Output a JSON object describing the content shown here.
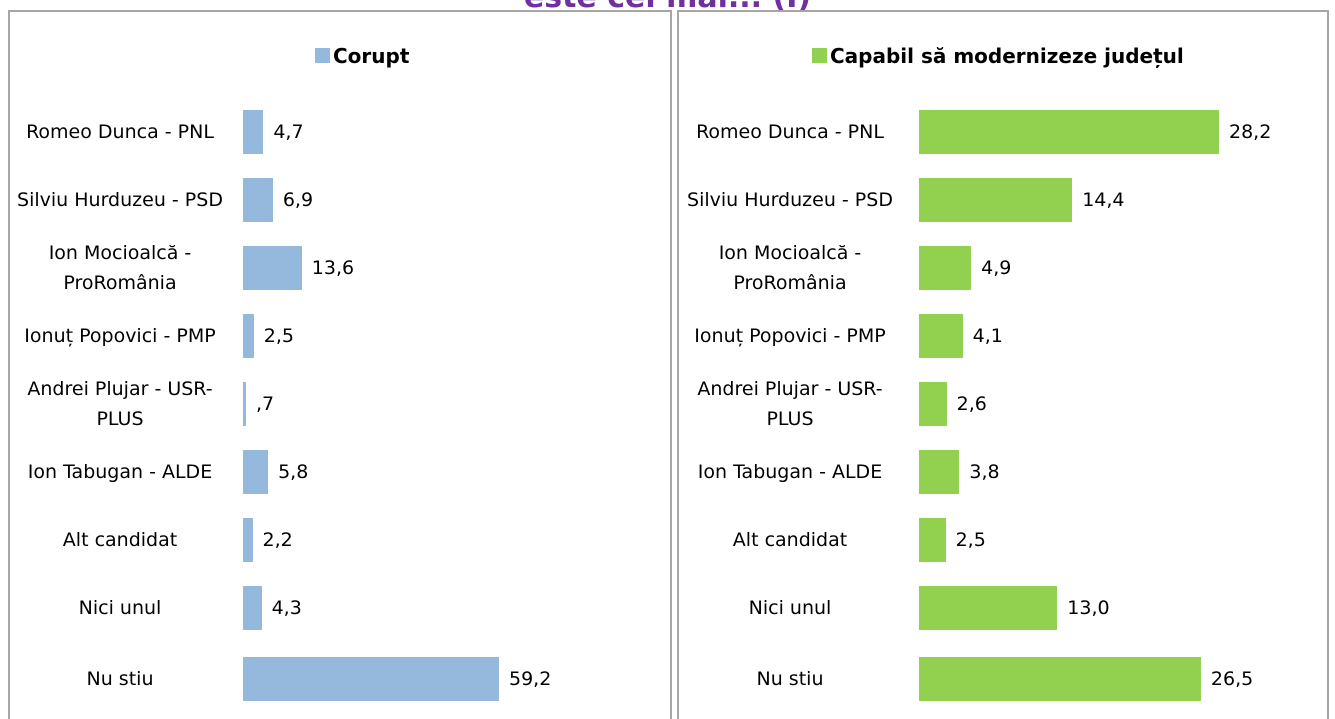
{
  "chart_data": [
    {
      "type": "bar",
      "title": "este cel mai... (I)",
      "series": [
        {
          "name": "Corupt",
          "color": "#95b9dc",
          "values": [
            4.7,
            6.9,
            13.6,
            2.5,
            0.7,
            5.8,
            2.2,
            4.3,
            59.2
          ],
          "value_labels": [
            "4,7",
            "6,9",
            "13,6",
            "2,5",
            ",7",
            "5,8",
            "2,2",
            "4,3",
            "59,2"
          ]
        }
      ],
      "categories": [
        "Romeo Dunca - PNL",
        "Silviu Hurduzeu - PSD",
        "Ion Mocioalcă - ProRomânia",
        "Ionuț Popovici - PMP",
        "Andrei Plujar - USR-PLUS",
        "Ion Tabugan - ALDE",
        "Alt candidat",
        "Nici unul",
        "Nu stiu"
      ]
    },
    {
      "type": "bar",
      "series": [
        {
          "name": "Capabil să modernizeze județul",
          "color": "#92d050",
          "values": [
            28.2,
            14.4,
            4.9,
            4.1,
            2.6,
            3.8,
            2.5,
            13.0,
            26.5
          ],
          "value_labels": [
            "28,2",
            "14,4",
            "4,9",
            "4,1",
            "2,6",
            "3,8",
            "2,5",
            "13,0",
            "26,5"
          ]
        }
      ],
      "categories": [
        "Romeo Dunca - PNL",
        "Silviu Hurduzeu - PSD",
        "Ion Mocioalcă - ProRomânia",
        "Ionuț Popovici - PMP",
        "Andrei Plujar - USR-PLUS",
        "Ion Tabugan - ALDE",
        "Alt candidat",
        "Nici unul",
        "Nu stiu"
      ]
    }
  ]
}
